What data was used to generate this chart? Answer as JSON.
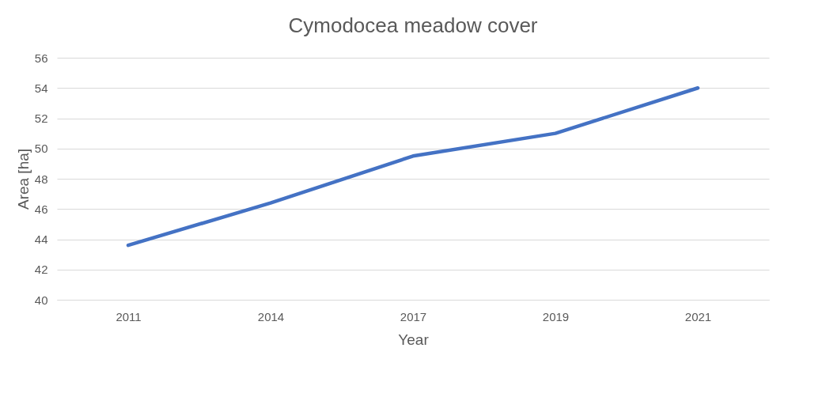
{
  "chart_data": {
    "type": "line",
    "title": "Cymodocea meadow cover",
    "xlabel": "Year",
    "ylabel": "Area [ha]",
    "categories": [
      "2011",
      "2014",
      "2017",
      "2019",
      "2021"
    ],
    "series": [
      {
        "color": "#4472c4",
        "values": [
          43.6,
          46.4,
          49.5,
          51.0,
          54.0
        ]
      }
    ],
    "ylim": [
      40,
      56
    ],
    "yticks": [
      40,
      42,
      44,
      46,
      48,
      50,
      52,
      54,
      56
    ],
    "grid": "y",
    "marker": "none",
    "line_style": "solid"
  }
}
